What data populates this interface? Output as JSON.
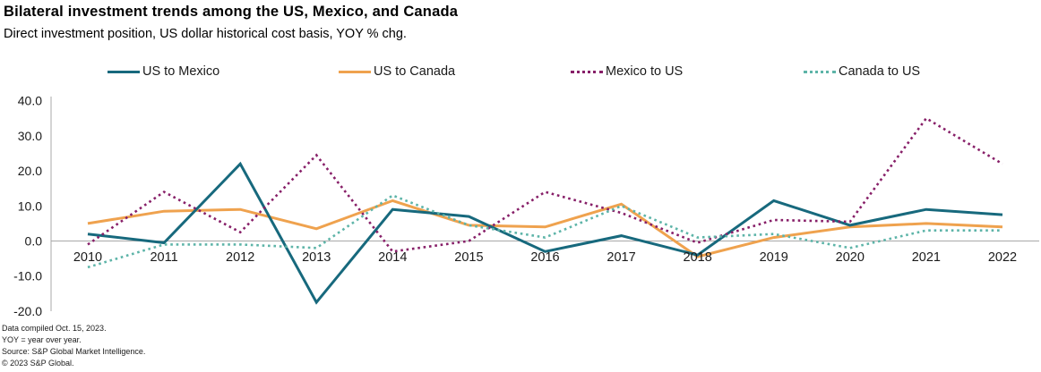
{
  "title": "Bilateral investment trends among the US, Mexico, and Canada",
  "subtitle": "Direct investment position, US dollar historical cost basis, YOY % chg.",
  "colors": {
    "us_to_mexico": "#17697d",
    "us_to_canada": "#efa24e",
    "mexico_to_us": "#871f68",
    "canada_to_us": "#5db4a8",
    "axis_line": "#a8a8a8"
  },
  "chart_data": {
    "type": "line",
    "x": [
      2010,
      2011,
      2012,
      2013,
      2014,
      2015,
      2016,
      2017,
      2018,
      2019,
      2020,
      2021,
      2022
    ],
    "series": [
      {
        "name": "US to Canada",
        "style": "solid",
        "color": "#efa24e",
        "values": [
          5,
          8.5,
          9,
          3.5,
          11.5,
          4.5,
          4,
          10.5,
          -4.5,
          1,
          4,
          5,
          4
        ]
      },
      {
        "name": "US to Mexico",
        "style": "solid",
        "color": "#17697d",
        "values": [
          2,
          -0.5,
          22,
          -17.5,
          9,
          7,
          -3,
          1.5,
          -4,
          11.5,
          4.5,
          9,
          7.5
        ]
      },
      {
        "name": "Mexico to US",
        "style": "dotted",
        "color": "#871f68",
        "values": [
          -1,
          14,
          2.5,
          24.5,
          -3,
          0,
          14,
          8,
          -0.5,
          6,
          5.5,
          35,
          22
        ]
      },
      {
        "name": "Canada to US",
        "style": "dotted",
        "color": "#5db4a8",
        "values": [
          -7.5,
          -1,
          -1,
          -2,
          13,
          4.5,
          1,
          10,
          1,
          2,
          -2,
          3,
          3
        ]
      }
    ],
    "legend_order": [
      "US to Mexico",
      "US to Canada",
      "Mexico to US",
      "Canada to US"
    ],
    "title": "Bilateral investment trends among the US, Mexico, and Canada",
    "subtitle": "Direct investment position, US dollar historical cost basis, YOY % chg.",
    "xlabel": "",
    "ylabel": "",
    "ylim": [
      -20,
      40
    ],
    "yticks": [
      40,
      30,
      20,
      10,
      0,
      -10,
      -20
    ],
    "ytick_labels": [
      "40.0",
      "30.0",
      "20.0",
      "10.0",
      "0.0",
      "-10.0",
      "-20.0"
    ],
    "grid": false,
    "legend_position": "top"
  },
  "footnotes": [
    "Data compiled Oct. 15, 2023.",
    "YOY = year over year.",
    "Source: S&P Global Market Intelligence.",
    "© 2023 S&P Global."
  ]
}
